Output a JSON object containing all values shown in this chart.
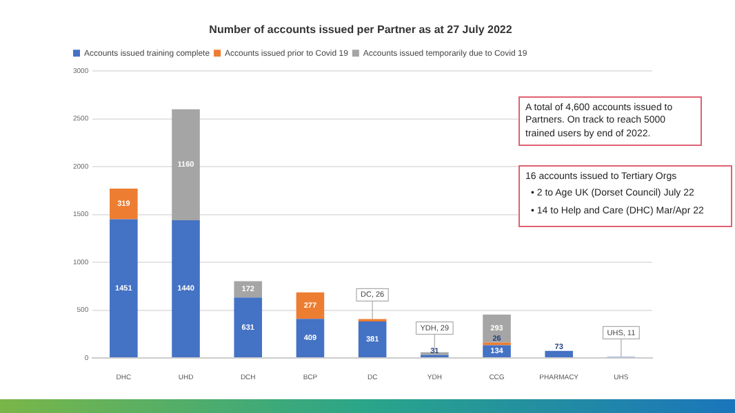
{
  "chart_data": {
    "type": "bar",
    "stacked": true,
    "title": "Number of accounts issued per Partner as at 27 July 2022",
    "categories": [
      "DHC",
      "UHD",
      "DCH",
      "BCP",
      "DC",
      "YDH",
      "CCG",
      "PHARMACY",
      "UHS"
    ],
    "series": [
      {
        "name": "Accounts issued training complete",
        "color": "#4472c4",
        "values": [
          1451,
          1440,
          631,
          409,
          381,
          31,
          134,
          73,
          11
        ],
        "value_labels": [
          "1451",
          "1440",
          "631",
          "409",
          "381",
          "31",
          "134",
          "73",
          "UHS, 11"
        ]
      },
      {
        "name": "Accounts issued prior to Covid 19",
        "color": "#ed7d31",
        "values": [
          319,
          null,
          null,
          277,
          26,
          null,
          26,
          null,
          null
        ],
        "value_labels": [
          "319",
          null,
          null,
          "277",
          "DC, 26",
          null,
          "26",
          null,
          null
        ]
      },
      {
        "name": "Accounts issued temporarily due to Covid 19",
        "color": "#a5a5a5",
        "values": [
          null,
          1160,
          172,
          null,
          null,
          29,
          293,
          null,
          null
        ],
        "value_labels": [
          null,
          "1160",
          "172",
          null,
          null,
          "YDH, 29",
          "293",
          null,
          null
        ]
      }
    ],
    "ylim": [
      0,
      3000
    ],
    "yticks": [
      0,
      500,
      1000,
      1500,
      2000,
      2500,
      3000
    ],
    "grid": "y",
    "legend": "top",
    "annotations": [
      "A total of 4,600 accounts issued to Partners. On track to reach 5000 trained users by end of 2022.",
      "16 accounts issued to Tertiary Orgs",
      "• 2 to Age UK (Dorset Council) July 22",
      "• 14 to Help and Care (DHC) Mar/Apr 22"
    ]
  }
}
